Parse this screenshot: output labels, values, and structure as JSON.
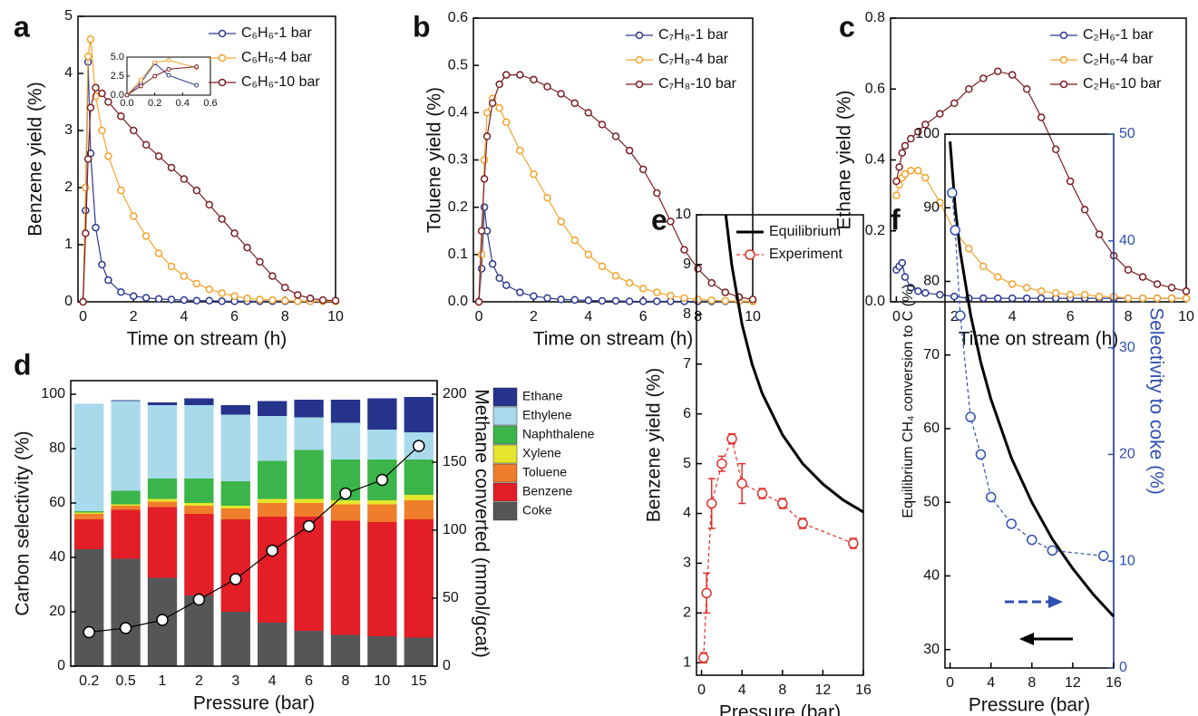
{
  "chart_data": [
    {
      "type": "line",
      "label": "a",
      "x_label": "Time on stream (h)",
      "y_label": "Benzene yield (%)",
      "xlim": [
        -0.2,
        10
      ],
      "ylim": [
        0,
        5
      ],
      "xticks": [
        0,
        2,
        4,
        6,
        8,
        10
      ],
      "yticks": [
        0,
        1,
        2,
        3,
        4,
        5
      ],
      "legend": "upper right",
      "x": [
        0,
        0.1,
        0.2,
        0.3,
        0.5,
        0.75,
        1,
        1.5,
        2,
        2.5,
        3,
        3.5,
        4,
        4.5,
        5,
        5.5,
        6,
        6.5,
        7,
        7.5,
        8,
        8.5,
        9,
        9.5,
        10
      ],
      "series": [
        {
          "name": "C₆H₆-1 bar",
          "color": "#2b3990",
          "line": "solid",
          "marker": "circle",
          "values": [
            0,
            1.6,
            4.2,
            2.6,
            1.3,
            0.65,
            0.38,
            0.17,
            0.1,
            0.07,
            0.05,
            0.04,
            0.03,
            0.02,
            0.02,
            0.01,
            0.01,
            0.01,
            0.01,
            0.01,
            0.01,
            0.01,
            0.01,
            0.01,
            0.01
          ]
        },
        {
          "name": "C₆H₆-4 bar",
          "color": "#f2a42e",
          "line": "solid",
          "marker": "circle",
          "values": [
            0,
            2.0,
            4.3,
            4.6,
            3.6,
            3.0,
            2.55,
            1.95,
            1.5,
            1.15,
            0.85,
            0.62,
            0.45,
            0.32,
            0.22,
            0.15,
            0.1,
            0.06,
            0.04,
            0.03,
            0.02,
            0.01,
            0.01,
            0.01,
            0.01
          ]
        },
        {
          "name": "C₆H₆-10 bar",
          "color": "#7a1e22",
          "line": "solid",
          "marker": "circle",
          "values": [
            0,
            1.2,
            2.5,
            3.4,
            3.75,
            3.65,
            3.5,
            3.25,
            3.0,
            2.75,
            2.55,
            2.35,
            2.15,
            1.95,
            1.7,
            1.45,
            1.2,
            0.95,
            0.7,
            0.45,
            0.25,
            0.12,
            0.06,
            0.03,
            0.02
          ]
        }
      ],
      "inset": {
        "xlim": [
          0,
          0.6
        ],
        "ylim": [
          0,
          5
        ],
        "xticks": [
          {
            "value": 0,
            "label": "0.0"
          },
          0.2,
          0.4,
          0.6
        ],
        "yticks": [
          {
            "value": 0,
            "label": "0.0"
          },
          2.5,
          {
            "value": 5,
            "label": "5.0"
          }
        ]
      }
    },
    {
      "type": "line",
      "label": "b",
      "x_label": "Time on stream (h)",
      "y_label": "Toluene yield (%)",
      "xlim": [
        -0.2,
        10
      ],
      "ylim": [
        0,
        0.6
      ],
      "xticks": [
        0,
        2,
        4,
        6,
        8,
        10
      ],
      "yticks": [
        {
          "value": 0,
          "label": "0.0"
        },
        0.1,
        0.2,
        0.3,
        0.4,
        0.5,
        0.6
      ],
      "legend": "upper right",
      "x": [
        0,
        0.1,
        0.2,
        0.3,
        0.5,
        0.75,
        1,
        1.5,
        2,
        2.5,
        3,
        3.5,
        4,
        4.5,
        5,
        5.5,
        6,
        6.5,
        7,
        7.5,
        8,
        8.5,
        9,
        9.5,
        10
      ],
      "series": [
        {
          "name": "C₇H₈-1 bar",
          "color": "#2b3990",
          "line": "solid",
          "marker": "circle",
          "values": [
            0,
            0.07,
            0.2,
            0.15,
            0.08,
            0.05,
            0.035,
            0.02,
            0.012,
            0.008,
            0.005,
            0.004,
            0.003,
            0.002,
            0.002,
            0.001,
            0.001,
            0.001,
            0.001,
            0.001,
            0.001,
            0.001,
            0.001,
            0.001,
            0.001
          ]
        },
        {
          "name": "C₇H₈-4 bar",
          "color": "#f2a42e",
          "line": "solid",
          "marker": "circle",
          "values": [
            0,
            0.1,
            0.3,
            0.4,
            0.43,
            0.41,
            0.38,
            0.32,
            0.27,
            0.22,
            0.17,
            0.13,
            0.1,
            0.075,
            0.055,
            0.04,
            0.028,
            0.02,
            0.013,
            0.008,
            0.005,
            0.003,
            0.002,
            0.001,
            0.001
          ]
        },
        {
          "name": "C₇H₈-10 bar",
          "color": "#7a1e22",
          "line": "solid",
          "marker": "circle",
          "values": [
            0,
            0.15,
            0.26,
            0.35,
            0.42,
            0.46,
            0.48,
            0.48,
            0.47,
            0.455,
            0.44,
            0.42,
            0.4,
            0.375,
            0.35,
            0.32,
            0.28,
            0.23,
            0.17,
            0.11,
            0.07,
            0.04,
            0.02,
            0.01,
            0.005
          ]
        }
      ]
    },
    {
      "type": "line",
      "label": "c",
      "x_label": "Time on stream (h)",
      "y_label": "Ethane yield (%)",
      "xlim": [
        -0.2,
        10
      ],
      "ylim": [
        0,
        0.8
      ],
      "xticks": [
        0,
        2,
        4,
        6,
        8,
        10
      ],
      "yticks": [
        {
          "value": 0,
          "label": "0.0"
        },
        0.2,
        0.4,
        0.6,
        0.8
      ],
      "legend": "upper left",
      "x": [
        0,
        0.1,
        0.2,
        0.3,
        0.5,
        0.75,
        1,
        1.5,
        2,
        2.5,
        3,
        3.5,
        4,
        4.5,
        5,
        5.5,
        6,
        6.5,
        7,
        7.5,
        8,
        8.5,
        9,
        9.5,
        10
      ],
      "series": [
        {
          "name": "C₂H₆-1 bar",
          "color": "#2b3990",
          "line": "solid",
          "marker": "circle",
          "values": [
            0.09,
            0.1,
            0.11,
            0.07,
            0.04,
            0.03,
            0.025,
            0.02,
            0.015,
            0.01,
            0.01,
            0.01,
            0.01,
            0.01,
            0.01,
            0.01,
            0.01,
            0.01,
            0.01,
            0.01,
            0.01,
            0.01,
            0.01,
            0.01,
            0.01
          ]
        },
        {
          "name": "C₂H₆-4 bar",
          "color": "#f2a42e",
          "line": "solid",
          "marker": "circle",
          "values": [
            0.3,
            0.33,
            0.35,
            0.36,
            0.37,
            0.37,
            0.35,
            0.28,
            0.2,
            0.15,
            0.1,
            0.07,
            0.05,
            0.04,
            0.03,
            0.025,
            0.02,
            0.02,
            0.015,
            0.015,
            0.01,
            0.01,
            0.01,
            0.01,
            0.01
          ]
        },
        {
          "name": "C₂H₆-10 bar",
          "color": "#7a1e22",
          "line": "solid",
          "marker": "circle",
          "values": [
            0.34,
            0.38,
            0.42,
            0.44,
            0.46,
            0.48,
            0.5,
            0.53,
            0.56,
            0.6,
            0.63,
            0.65,
            0.64,
            0.6,
            0.52,
            0.43,
            0.34,
            0.26,
            0.19,
            0.13,
            0.09,
            0.07,
            0.05,
            0.04,
            0.03
          ]
        }
      ]
    },
    {
      "type": "bar",
      "stacked": true,
      "label": "d",
      "x_label": "Pressure (bar)",
      "y_label": "Carbon selectivity (%)",
      "y2_label": "Methane converted (mmol/gcat)",
      "categories": [
        "0.2",
        "0.5",
        "1",
        "2",
        "3",
        "4",
        "6",
        "8",
        "10",
        "15"
      ],
      "ylim": [
        0,
        105
      ],
      "yticks": [
        0,
        20,
        40,
        60,
        80,
        100
      ],
      "y2lim": [
        0,
        210
      ],
      "y2ticks": [
        0,
        50,
        100,
        150,
        200
      ],
      "legend": "outside right",
      "legend_reverse": true,
      "series": [
        {
          "name": "Coke",
          "color": "#545658",
          "values": [
            43,
            39.5,
            32.5,
            26,
            20,
            16,
            13,
            11.5,
            11,
            10.5
          ]
        },
        {
          "name": "Benzene",
          "color": "#e31e26",
          "values": [
            11,
            18,
            26,
            30,
            34,
            39,
            42,
            42,
            42,
            43.5
          ]
        },
        {
          "name": "Toluene",
          "color": "#ef7d2b",
          "values": [
            2,
            1.5,
            2,
            3,
            4,
            5,
            5,
            6,
            6.5,
            7
          ]
        },
        {
          "name": "Xylene",
          "color": "#e6e62c",
          "values": [
            0.5,
            0.5,
            1,
            1,
            1,
            1.5,
            1.5,
            1.5,
            1.5,
            2
          ]
        },
        {
          "name": "Naphthalene",
          "color": "#3bb54a",
          "values": [
            0.5,
            5,
            7.5,
            9,
            9,
            14,
            18,
            15,
            15,
            13
          ]
        },
        {
          "name": "Ethylene",
          "color": "#a8daec",
          "values": [
            39.5,
            33,
            27,
            27,
            24.5,
            16.5,
            12,
            13.5,
            11,
            10
          ]
        },
        {
          "name": "Ethane",
          "color": "#26338d",
          "values": [
            0,
            0.3,
            1,
            2.5,
            3.5,
            5.5,
            6.5,
            8.5,
            11.5,
            13
          ]
        },
        {
          "color": "#000000",
          "axis": "y2",
          "line": "solid",
          "marker": "circle",
          "values": [
            25,
            28,
            34,
            49,
            64,
            85,
            103,
            127,
            137,
            162
          ]
        }
      ]
    },
    {
      "type": "line",
      "label": "e",
      "x_label": "Pressure (bar)",
      "y_label": "Benzene yield (%)",
      "xlim": [
        -0.5,
        16
      ],
      "ylim": [
        0.75,
        10
      ],
      "xticks": [
        0,
        4,
        8,
        12,
        16
      ],
      "yticks": [
        1,
        2,
        3,
        4,
        5,
        6,
        7,
        8,
        9,
        10
      ],
      "legend": "upper right",
      "series": [
        {
          "name": "Equilibrium",
          "color": "#000000",
          "line": "solid",
          "line_width": 3,
          "x": [
            2.4,
            3,
            4,
            5,
            6,
            8,
            10,
            12,
            14,
            16
          ],
          "values": [
            10,
            8.98,
            7.8,
            7.0,
            6.41,
            5.58,
            5.0,
            4.59,
            4.27,
            4.03
          ]
        },
        {
          "name": "Experiment",
          "color": "#e0302a",
          "line": "dashed",
          "marker": "circle",
          "marker_size": 5,
          "x": [
            0.2,
            0.5,
            1,
            2,
            3,
            4,
            6,
            8,
            10,
            15
          ],
          "values": [
            1.1,
            2.4,
            4.2,
            5.0,
            5.5,
            4.6,
            4.4,
            4.2,
            3.8,
            3.4
          ],
          "errors": [
            0.1,
            0.4,
            0.5,
            0.15,
            0.1,
            0.4,
            0.1,
            0.1,
            0.1,
            0.1
          ]
        }
      ]
    },
    {
      "type": "line",
      "label": "f",
      "x_label": "Pressure (bar)",
      "y_label": "Equilibrium CH₄ conversion to C (%)",
      "y2_label": "Selectivity to coke (%)",
      "xlim": [
        -0.5,
        16
      ],
      "ylim": [
        27.5,
        100
      ],
      "xticks": [
        0,
        4,
        8,
        12,
        16
      ],
      "yticks": [
        30,
        40,
        50,
        60,
        70,
        80,
        90,
        100
      ],
      "y2lim": [
        0,
        50
      ],
      "y2ticks": [
        0,
        10,
        20,
        30,
        40,
        50
      ],
      "y2_color": "#3050b0",
      "series": [
        {
          "color": "#000000",
          "line": "solid",
          "line_width": 3,
          "x": [
            0,
            0.5,
            1,
            2,
            3,
            4,
            6,
            8,
            10,
            12,
            14,
            16
          ],
          "values": [
            99,
            90,
            84,
            75.5,
            69,
            64,
            56,
            50,
            45,
            41,
            37.5,
            34.5
          ]
        },
        {
          "color": "#3050b0",
          "axis": "y2",
          "line": "dashed",
          "marker": "circle",
          "marker_size": 5,
          "x": [
            0.2,
            0.5,
            1,
            2,
            3,
            4,
            6,
            8,
            10,
            15
          ],
          "values": [
            44.5,
            41,
            33,
            23.5,
            20,
            16,
            13.5,
            12,
            11,
            10.5
          ]
        }
      ]
    }
  ]
}
